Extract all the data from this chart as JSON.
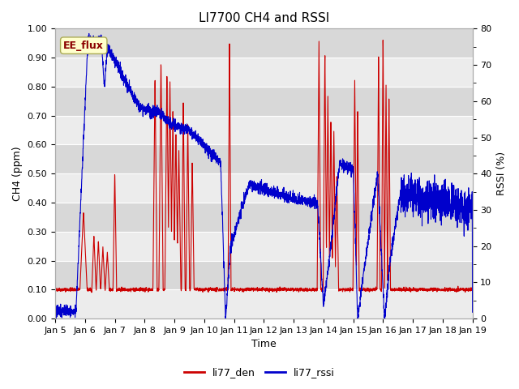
{
  "title": "LI7700 CH4 and RSSI",
  "xlabel": "Time",
  "ylabel_left": "CH4 (ppm)",
  "ylabel_right": "RSSI (%)",
  "ylim_left": [
    0.0,
    1.0
  ],
  "ylim_right": [
    0,
    80
  ],
  "yticks_left": [
    0.0,
    0.1,
    0.2,
    0.3,
    0.4,
    0.5,
    0.6,
    0.7,
    0.8,
    0.9,
    1.0
  ],
  "yticks_right": [
    0,
    10,
    20,
    30,
    40,
    50,
    60,
    70,
    80
  ],
  "annotation_text": "EE_flux",
  "annotation_bg": "#ffffcc",
  "annotation_fg": "#8b0000",
  "color_den": "#cc0000",
  "color_rssi": "#0000cc",
  "legend_labels": [
    "li77_den",
    "li77_rssi"
  ],
  "fig_bg_color": "#ffffff",
  "band_light": "#ececec",
  "band_dark": "#d8d8d8",
  "grid_color": "#ffffff",
  "title_fontsize": 11,
  "label_fontsize": 9,
  "tick_fontsize": 8,
  "x_tick_days": [
    5,
    6,
    7,
    8,
    9,
    10,
    11,
    12,
    13,
    14,
    15,
    16,
    17,
    18,
    19
  ]
}
